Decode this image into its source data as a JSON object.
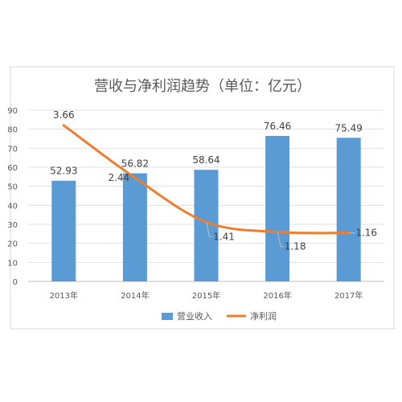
{
  "chart_data": {
    "type": "bar",
    "title": "营收与净利润趋势（单位：亿元）",
    "categories": [
      "2013年",
      "2014年",
      "2015年",
      "2016年",
      "2017年"
    ],
    "ylim": [
      0,
      90
    ],
    "yticks": [
      0,
      10,
      20,
      30,
      40,
      50,
      60,
      70,
      80,
      90
    ],
    "grid": true,
    "legend_position": "bottom",
    "series": [
      {
        "name": "营业收入",
        "type": "bar",
        "color": "#5b9bd5",
        "values": [
          52.93,
          56.82,
          58.64,
          76.46,
          75.49
        ],
        "labels": [
          "52.93",
          "56.82",
          "58.64",
          "76.46",
          "75.49"
        ]
      },
      {
        "name": "净利润",
        "type": "line",
        "color": "#ed7d31",
        "values": [
          3.66,
          2.44,
          1.41,
          1.18,
          1.16
        ],
        "labels": [
          "3.66",
          "2.44",
          "1.41",
          "1.18",
          "1.16"
        ]
      }
    ]
  }
}
